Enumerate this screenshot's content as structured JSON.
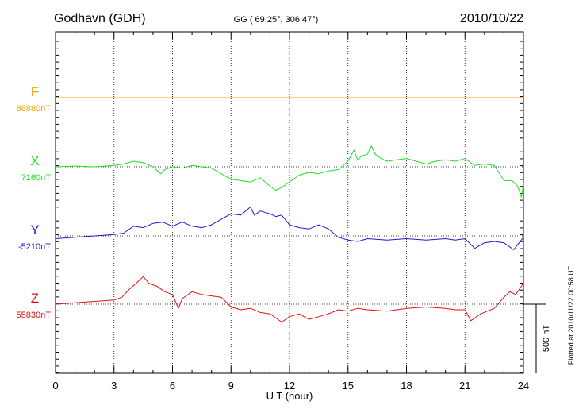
{
  "header": {
    "station": "Godhavn (GDH)",
    "coords": "GG ( 69.25°, 306.47°)",
    "date": "2010/10/22"
  },
  "side_note": "Plotted at 2010/11/22 00:58 UT",
  "scale_label": "500 nT",
  "chart_data": {
    "type": "line",
    "title": "",
    "xlabel": "U T (hour)",
    "ylabel": "",
    "xlim": [
      0,
      24
    ],
    "x_ticks": [
      0,
      3,
      6,
      9,
      12,
      15,
      18,
      21,
      24
    ],
    "x_tick_labels": [
      "0",
      "3",
      "6",
      "9",
      "12",
      "15",
      "18",
      "21",
      "24"
    ],
    "grid": "vertical dotted at 3-hour intervals; dotted baseline per component",
    "scale_bar_nT": 500,
    "series": [
      {
        "name": "F",
        "baseline": "88880nT",
        "baseline_value": 88880,
        "color": "#f4a000",
        "x": [
          0,
          24
        ],
        "y": [
          88880,
          88880
        ]
      },
      {
        "name": "X",
        "baseline": "7160nT",
        "baseline_value": 7160,
        "color": "#22dd22",
        "x": [
          0,
          1,
          2,
          3,
          3.5,
          4,
          4.5,
          5,
          5.4,
          5.6,
          6,
          6.5,
          7,
          7.5,
          8,
          8.5,
          9,
          9.5,
          10,
          10.5,
          11,
          11.3,
          11.6,
          12,
          12.5,
          13,
          13.5,
          14,
          14.5,
          15,
          15.3,
          15.5,
          15.7,
          16,
          16.2,
          16.4,
          16.7,
          17,
          17.5,
          18,
          18.5,
          19,
          19.5,
          20,
          20.5,
          21,
          21.5,
          22,
          22.5,
          23,
          23.4,
          23.7,
          23.9,
          24
        ],
        "y": [
          7160,
          7165,
          7160,
          7170,
          7180,
          7200,
          7190,
          7160,
          7110,
          7140,
          7160,
          7150,
          7170,
          7160,
          7150,
          7110,
          7070,
          7060,
          7050,
          7080,
          7020,
          6990,
          7010,
          7050,
          7100,
          7120,
          7110,
          7130,
          7140,
          7200,
          7280,
          7210,
          7240,
          7250,
          7310,
          7250,
          7220,
          7200,
          7210,
          7220,
          7200,
          7180,
          7200,
          7210,
          7200,
          7220,
          7170,
          7180,
          7170,
          7060,
          7060,
          7020,
          6940,
          7040
        ]
      },
      {
        "name": "Y",
        "baseline": "-5210nT",
        "baseline_value": -5210,
        "color": "#1a1acc",
        "x": [
          0,
          1,
          2,
          3,
          3.5,
          4,
          4.5,
          5,
          5.5,
          6,
          6.5,
          7,
          7.5,
          8,
          8.5,
          9,
          9.5,
          10,
          10.2,
          10.5,
          11,
          11.3,
          11.6,
          12,
          12.5,
          13,
          13.5,
          14,
          14.5,
          15,
          15.5,
          16,
          17,
          18,
          19,
          20,
          20.5,
          21,
          21.5,
          22,
          22.5,
          23,
          23.5,
          24
        ],
        "y": [
          -5230,
          -5220,
          -5210,
          -5200,
          -5190,
          -5140,
          -5150,
          -5120,
          -5110,
          -5140,
          -5110,
          -5140,
          -5150,
          -5130,
          -5090,
          -5050,
          -5060,
          -5000,
          -5060,
          -5030,
          -5050,
          -5070,
          -5060,
          -5130,
          -5150,
          -5160,
          -5130,
          -5160,
          -5220,
          -5240,
          -5250,
          -5230,
          -5240,
          -5230,
          -5240,
          -5230,
          -5240,
          -5230,
          -5300,
          -5260,
          -5250,
          -5260,
          -5310,
          -5220
        ]
      },
      {
        "name": "Z",
        "baseline": "55830nT",
        "baseline_value": 55830,
        "color": "#dd1111",
        "x": [
          0,
          1,
          2,
          3,
          3.4,
          3.8,
          4.2,
          4.5,
          4.8,
          5.2,
          5.6,
          6,
          6.3,
          6.5,
          7,
          7.5,
          8,
          8.5,
          9,
          9.5,
          10,
          10.5,
          11,
          11.3,
          11.6,
          12,
          12.5,
          13,
          13.5,
          14,
          14.5,
          15,
          15.5,
          16,
          17,
          18,
          19,
          20,
          20.5,
          21,
          21.3,
          21.8,
          22.5,
          23,
          23.3,
          23.6,
          23.9,
          24
        ],
        "y": [
          55830,
          55840,
          55850,
          55860,
          55880,
          55940,
          55990,
          56030,
          55980,
          55960,
          55920,
          55900,
          55800,
          55870,
          55920,
          55900,
          55890,
          55880,
          55810,
          55790,
          55800,
          55770,
          55760,
          55730,
          55700,
          55740,
          55760,
          55720,
          55740,
          55760,
          55790,
          55780,
          55800,
          55790,
          55780,
          55800,
          55810,
          55800,
          55790,
          55790,
          55710,
          55760,
          55800,
          55880,
          55920,
          55900,
          55960,
          55990
        ]
      }
    ]
  }
}
